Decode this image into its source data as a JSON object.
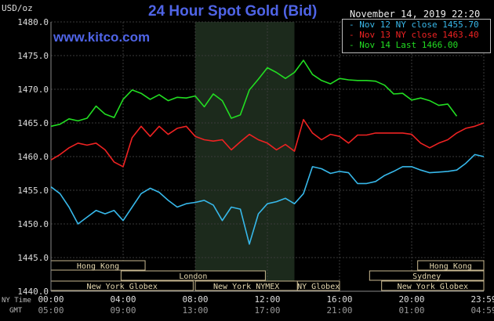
{
  "header": {
    "unit": "USD/oz",
    "title": "24 Hour Spot Gold (Bid)",
    "url": "www.kitco.com",
    "datetime": "November 14, 2019 22:20"
  },
  "legend": [
    {
      "label": "- Nov 12 NY close 1455.70",
      "color": "#37b8ea"
    },
    {
      "label": "- Nov 13 NY close 1463.40",
      "color": "#ee2222"
    },
    {
      "label": "- Nov 14 Last 1466.00",
      "color": "#22dd22"
    }
  ],
  "row_labels": {
    "ny_time": "NY Time",
    "gmt": "GMT"
  },
  "sessions": [
    {
      "name": "Hong Kong",
      "start": 0,
      "end": 7.83,
      "row": 0
    },
    {
      "name": "London",
      "start": 5.83,
      "end": 17.83,
      "row": 1
    },
    {
      "name": "New York Globex",
      "start": 0,
      "end": 11.83,
      "row": 2
    },
    {
      "name": "New York NYMEX",
      "start": 12,
      "end": 20.5,
      "row": 2
    },
    {
      "name": "NY Globex",
      "start": 20.5,
      "end": 24,
      "row": 2
    },
    {
      "name": "Hong Kong",
      "start": 30.5,
      "end": 36,
      "row": 0
    },
    {
      "name": "Sydney",
      "start": 26.5,
      "end": 36,
      "row": 1
    },
    {
      "name": "New York Globex",
      "start": 27.5,
      "end": 36,
      "row": 2
    }
  ],
  "chart_data": {
    "type": "line",
    "title": "24 Hour Spot Gold (Bid)",
    "ylabel": "USD/oz",
    "ylim": [
      1440,
      1480
    ],
    "yticks": [
      "1440.0",
      "1445.0",
      "1450.0",
      "1455.0",
      "1460.0",
      "1465.0",
      "1470.0",
      "1475.0",
      "1480.0"
    ],
    "xlim": [
      0,
      24
    ],
    "xticks_ny": [
      "00:00",
      "04:00",
      "08:00",
      "12:00",
      "16:00",
      "20:00",
      "23:59"
    ],
    "xticks_gmt": [
      "05:00",
      "09:00",
      "13:00",
      "17:00",
      "21:00",
      "01:00",
      "04:59"
    ],
    "grid": true,
    "shaded_region": [
      8,
      13.5
    ],
    "series": [
      {
        "name": "Nov 12",
        "color": "#37b8ea",
        "x": [
          0,
          0.5,
          1,
          1.5,
          2,
          2.5,
          3,
          3.5,
          4,
          4.5,
          5,
          5.5,
          6,
          6.5,
          7,
          7.5,
          8,
          8.5,
          9,
          9.5,
          10,
          10.5,
          11,
          11.5,
          12,
          12.5,
          13,
          13.5,
          14,
          14.5,
          15,
          15.5,
          16,
          16.5,
          17,
          17.5,
          18,
          18.5,
          19,
          19.5,
          20,
          20.5,
          21,
          21.5,
          22,
          22.5,
          23,
          23.5,
          24
        ],
        "y": [
          1455.5,
          1454.5,
          1452.5,
          1450,
          1451,
          1452,
          1451.5,
          1452,
          1450.5,
          1452.5,
          1454.5,
          1455.3,
          1454.7,
          1453.5,
          1452.5,
          1453,
          1453.2,
          1453.5,
          1452.8,
          1450.5,
          1452.5,
          1452.2,
          1447,
          1451.5,
          1453,
          1453.3,
          1453.8,
          1453,
          1454.5,
          1458.5,
          1458.2,
          1457.5,
          1457.8,
          1457.6,
          1456,
          1456,
          1456.3,
          1457.2,
          1457.8,
          1458.5,
          1458.5,
          1458,
          1457.6,
          1457.7,
          1457.8,
          1458,
          1459,
          1460.3,
          1460
        ]
      },
      {
        "name": "Nov 13",
        "color": "#ee2222",
        "x": [
          0,
          0.5,
          1,
          1.5,
          2,
          2.5,
          3,
          3.5,
          4,
          4.5,
          5,
          5.5,
          6,
          6.5,
          7,
          7.5,
          8,
          8.5,
          9,
          9.5,
          10,
          10.5,
          11,
          11.5,
          12,
          12.5,
          13,
          13.5,
          14,
          14.5,
          15,
          15.5,
          16,
          16.5,
          17,
          17.5,
          18,
          18.5,
          19,
          19.5,
          20,
          20.5,
          21,
          21.5,
          22,
          22.5,
          23,
          23.5,
          24
        ],
        "y": [
          1459.5,
          1460.3,
          1461.3,
          1462,
          1461.7,
          1462,
          1461,
          1459.2,
          1458.5,
          1462.8,
          1464.5,
          1463,
          1464.5,
          1463.3,
          1464.2,
          1464.5,
          1463,
          1462.5,
          1462.3,
          1462.5,
          1461,
          1462.2,
          1463.3,
          1462.5,
          1462,
          1461,
          1461.8,
          1460.8,
          1465.5,
          1463.5,
          1462.5,
          1463.3,
          1463,
          1462,
          1463.2,
          1463.2,
          1463.5,
          1463.5,
          1463.5,
          1463.5,
          1463.3,
          1462,
          1461.3,
          1462,
          1462.5,
          1463.5,
          1464.2,
          1464.5,
          1465
        ]
      },
      {
        "name": "Nov 14",
        "color": "#22dd22",
        "x": [
          0,
          0.5,
          1,
          1.5,
          2,
          2.5,
          3,
          3.5,
          4,
          4.5,
          5,
          5.5,
          6,
          6.5,
          7,
          7.5,
          8,
          8.5,
          9,
          9.5,
          10,
          10.5,
          11,
          11.5,
          12,
          12.5,
          13,
          13.5,
          14,
          14.5,
          15,
          15.5,
          16,
          16.5,
          17,
          17.5,
          18,
          18.5,
          19,
          19.5,
          20,
          20.5,
          21,
          21.5,
          22,
          22.5
        ],
        "y": [
          1464.5,
          1464.8,
          1465.6,
          1465.3,
          1465.7,
          1467.5,
          1466.3,
          1465.8,
          1468.5,
          1469.9,
          1469.4,
          1468.5,
          1469.2,
          1468.3,
          1468.8,
          1468.7,
          1469,
          1467.4,
          1469.3,
          1468.3,
          1465.7,
          1466.2,
          1469.9,
          1471.5,
          1473.2,
          1472.5,
          1471.6,
          1472.5,
          1474.3,
          1472.2,
          1471.3,
          1470.8,
          1471.6,
          1471.4,
          1471.3,
          1471.3,
          1471.2,
          1470.6,
          1469.3,
          1469.4,
          1468.4,
          1468.7,
          1468.3,
          1467.6,
          1467.8,
          1466
        ]
      }
    ]
  }
}
